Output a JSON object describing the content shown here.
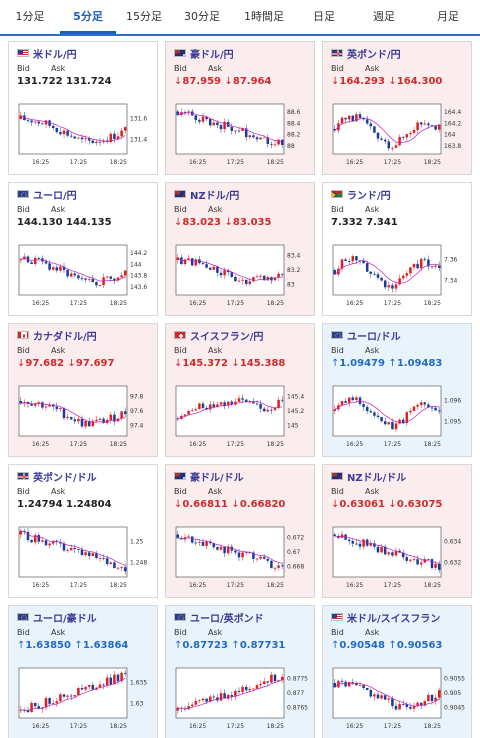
{
  "tabs": [
    {
      "label": "1分足",
      "active": false
    },
    {
      "label": "5分足",
      "active": true
    },
    {
      "label": "15分足",
      "active": false
    },
    {
      "label": "30分足",
      "active": false
    },
    {
      "label": "1時間足",
      "active": false
    },
    {
      "label": "日足",
      "active": false
    },
    {
      "label": "週足",
      "active": false
    },
    {
      "label": "月足",
      "active": false
    }
  ],
  "labels": {
    "bid": "Bid",
    "ask": "Ask"
  },
  "colors": {
    "down_text": "#d02a2a",
    "up_text": "#1e6bc4",
    "down_card": "#fbeced",
    "up_card": "#e9f3fb",
    "candle_up": "#e02020",
    "candle_down": "#1a3c9a",
    "ma": "#c020c0",
    "tab_active": "#1e5fb8"
  },
  "cards": [
    {
      "name": "米ドル/円",
      "flag": "us-flag",
      "dir": "flat",
      "arrow": "",
      "bid": "131.722",
      "ask": "131.724",
      "chart_data": {
        "type": "candlestick",
        "y_ticks": [
          "131.6",
          "131.4"
        ],
        "x_ticks": [
          "16:25",
          "17:25",
          "18:25"
        ],
        "shape": "fall-rise"
      }
    },
    {
      "name": "豪ドル/円",
      "flag": "au-flag",
      "dir": "down",
      "arrow": "↓",
      "bid": "87.959",
      "ask": "87.964",
      "chart_data": {
        "type": "candlestick",
        "y_ticks": [
          "88.6",
          "88.4",
          "88.2",
          "88"
        ],
        "x_ticks": [
          "16:25",
          "17:25",
          "18:25"
        ],
        "shape": "fall"
      }
    },
    {
      "name": "英ポンド/円",
      "flag": "gb-flag",
      "dir": "down",
      "arrow": "↓",
      "bid": "164.293",
      "ask": "164.300",
      "chart_data": {
        "type": "candlestick",
        "y_ticks": [
          "164.4",
          "164.2",
          "164",
          "163.8"
        ],
        "x_ticks": [
          "16:25",
          "17:25",
          "18:25"
        ],
        "shape": "wave"
      }
    },
    {
      "name": "ユーロ/円",
      "flag": "eu-flag",
      "dir": "flat",
      "arrow": "",
      "bid": "144.130",
      "ask": "144.135",
      "chart_data": {
        "type": "candlestick",
        "y_ticks": [
          "144.2",
          "144",
          "143.8",
          "143.6"
        ],
        "x_ticks": [
          "16:25",
          "17:25",
          "18:25"
        ],
        "shape": "fall-rise"
      }
    },
    {
      "name": "NZドル/円",
      "flag": "nz-flag",
      "dir": "down",
      "arrow": "↓",
      "bid": "83.023",
      "ask": "83.035",
      "chart_data": {
        "type": "candlestick",
        "y_ticks": [
          "83.4",
          "83.2",
          "83"
        ],
        "x_ticks": [
          "16:25",
          "17:25",
          "18:25"
        ],
        "shape": "fall-rise"
      }
    },
    {
      "name": "ランド/円",
      "flag": "za-flag",
      "dir": "flat",
      "arrow": "",
      "bid": "7.332",
      "ask": "7.341",
      "chart_data": {
        "type": "candlestick",
        "y_ticks": [
          "7.36",
          "7.34"
        ],
        "x_ticks": [
          "16:25",
          "17:25",
          "18:25"
        ],
        "shape": "wave"
      }
    },
    {
      "name": "カナダドル/円",
      "flag": "ca-flag",
      "dir": "down",
      "arrow": "↓",
      "bid": "97.682",
      "ask": "97.697",
      "chart_data": {
        "type": "candlestick",
        "y_ticks": [
          "97.8",
          "97.6",
          "97.4"
        ],
        "x_ticks": [
          "16:25",
          "17:25",
          "18:25"
        ],
        "shape": "fall-rise"
      }
    },
    {
      "name": "スイスフラン/円",
      "flag": "ch-flag",
      "dir": "down",
      "arrow": "↓",
      "bid": "145.372",
      "ask": "145.388",
      "chart_data": {
        "type": "candlestick",
        "y_ticks": [
          "145.4",
          "145.2",
          "145"
        ],
        "x_ticks": [
          "16:25",
          "17:25",
          "18:25"
        ],
        "shape": "rise-fall"
      }
    },
    {
      "name": "ユーロ/ドル",
      "flag": "eu-flag",
      "dir": "up",
      "arrow": "↑",
      "bid": "1.09479",
      "ask": "1.09483",
      "chart_data": {
        "type": "candlestick",
        "y_ticks": [
          "1.096",
          "1.095"
        ],
        "x_ticks": [
          "16:25",
          "17:25",
          "18:25"
        ],
        "shape": "wave"
      }
    },
    {
      "name": "英ポンド/ドル",
      "flag": "gb-flag",
      "dir": "flat",
      "arrow": "",
      "bid": "1.24794",
      "ask": "1.24804",
      "chart_data": {
        "type": "candlestick",
        "y_ticks": [
          "1.25",
          "1.248"
        ],
        "x_ticks": [
          "16:25",
          "17:25",
          "18:25"
        ],
        "shape": "fall"
      }
    },
    {
      "name": "豪ドル/ドル",
      "flag": "au-flag",
      "dir": "down",
      "arrow": "↓",
      "bid": "0.66811",
      "ask": "0.66820",
      "chart_data": {
        "type": "candlestick",
        "y_ticks": [
          "0.672",
          "0.67",
          "0.668"
        ],
        "x_ticks": [
          "16:25",
          "17:25",
          "18:25"
        ],
        "shape": "fall"
      }
    },
    {
      "name": "NZドル/ドル",
      "flag": "nz-flag",
      "dir": "down",
      "arrow": "↓",
      "bid": "0.63061",
      "ask": "0.63075",
      "chart_data": {
        "type": "candlestick",
        "y_ticks": [
          "0.634",
          "0.632"
        ],
        "x_ticks": [
          "16:25",
          "17:25",
          "18:25"
        ],
        "shape": "fall"
      }
    },
    {
      "name": "ユーロ/豪ドル",
      "flag": "eu-flag",
      "dir": "up",
      "arrow": "↑",
      "bid": "1.63850",
      "ask": "1.63864",
      "chart_data": {
        "type": "candlestick",
        "y_ticks": [
          "1.635",
          "1.63"
        ],
        "x_ticks": [
          "16:25",
          "17:25",
          "18:25"
        ],
        "shape": "rise"
      }
    },
    {
      "name": "ユーロ/英ポンド",
      "flag": "eu-flag",
      "dir": "up",
      "arrow": "↑",
      "bid": "0.87723",
      "ask": "0.87731",
      "chart_data": {
        "type": "candlestick",
        "y_ticks": [
          "0.8775",
          "0.877",
          "0.8765"
        ],
        "x_ticks": [
          "16:25",
          "17:25",
          "18:25"
        ],
        "shape": "rise"
      }
    },
    {
      "name": "米ドル/スイスフラン",
      "flag": "us-flag",
      "dir": "up",
      "arrow": "↑",
      "bid": "0.90548",
      "ask": "0.90563",
      "chart_data": {
        "type": "candlestick",
        "y_ticks": [
          "0.9055",
          "0.905",
          "0.9045"
        ],
        "x_ticks": [
          "16:25",
          "17:25",
          "18:25"
        ],
        "shape": "fall-rise"
      }
    }
  ]
}
